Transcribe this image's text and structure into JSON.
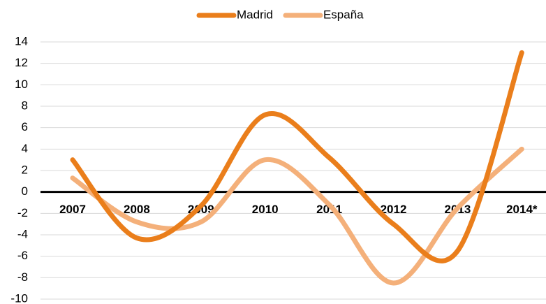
{
  "chart_data": {
    "type": "line",
    "categories": [
      "2007",
      "2008",
      "2009",
      "2010",
      "2011",
      "2012",
      "2013",
      "2014*"
    ],
    "series": [
      {
        "name": "Madrid",
        "color": "#ea7e1b",
        "values": [
          3,
          -4.3,
          -1.3,
          7.2,
          3.2,
          -3,
          -5.5,
          13
        ]
      },
      {
        "name": "España",
        "color": "#f4b07a",
        "values": [
          1.3,
          -2.8,
          -2.8,
          3,
          -1.2,
          -8.5,
          -1.5,
          4
        ]
      }
    ],
    "ylim": [
      -10,
      14
    ],
    "yticks": [
      -10,
      -8,
      -6,
      -4,
      -2,
      0,
      2,
      4,
      6,
      8,
      10,
      12,
      14
    ],
    "grid": true,
    "legend": "top"
  }
}
